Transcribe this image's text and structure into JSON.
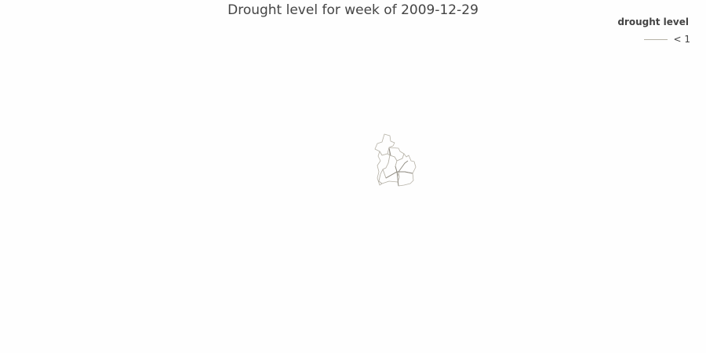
{
  "map": {
    "title": "Drought level for week of 2009-12-29",
    "legend": {
      "title": "drought level",
      "items": [
        {
          "label": "< 1",
          "color": "#b6b2a7"
        }
      ]
    },
    "colors": {
      "background": "#fefefe",
      "boundary": "#b6b2a7",
      "boundary_dark": "#8e8a80"
    }
  }
}
